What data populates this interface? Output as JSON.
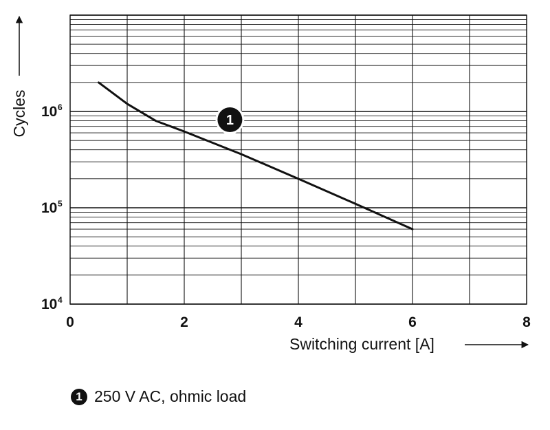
{
  "chart_data": {
    "type": "line",
    "xlabel": "Switching current [A]",
    "ylabel": "Cycles",
    "x_ticks": [
      "0",
      "2",
      "4",
      "6",
      "8"
    ],
    "y_tick_base": "10",
    "y_tick_exponents": [
      "4",
      "5",
      "6"
    ],
    "xlim": [
      0,
      8
    ],
    "ylim": [
      10000,
      10000000
    ],
    "y_scale": "log",
    "grid": true,
    "series": [
      {
        "marker": "1",
        "x": [
          0.5,
          1.0,
          1.5,
          2.0,
          3.0,
          4.0,
          5.0,
          6.0
        ],
        "y": [
          2000000,
          1200000,
          800000,
          620000,
          360000,
          200000,
          110000,
          60000
        ]
      }
    ],
    "annotations": [
      {
        "label": "1",
        "x": 2.8,
        "y": 1000000
      }
    ]
  },
  "legend": {
    "marker": "1",
    "text": "250 V AC, ohmic load"
  }
}
